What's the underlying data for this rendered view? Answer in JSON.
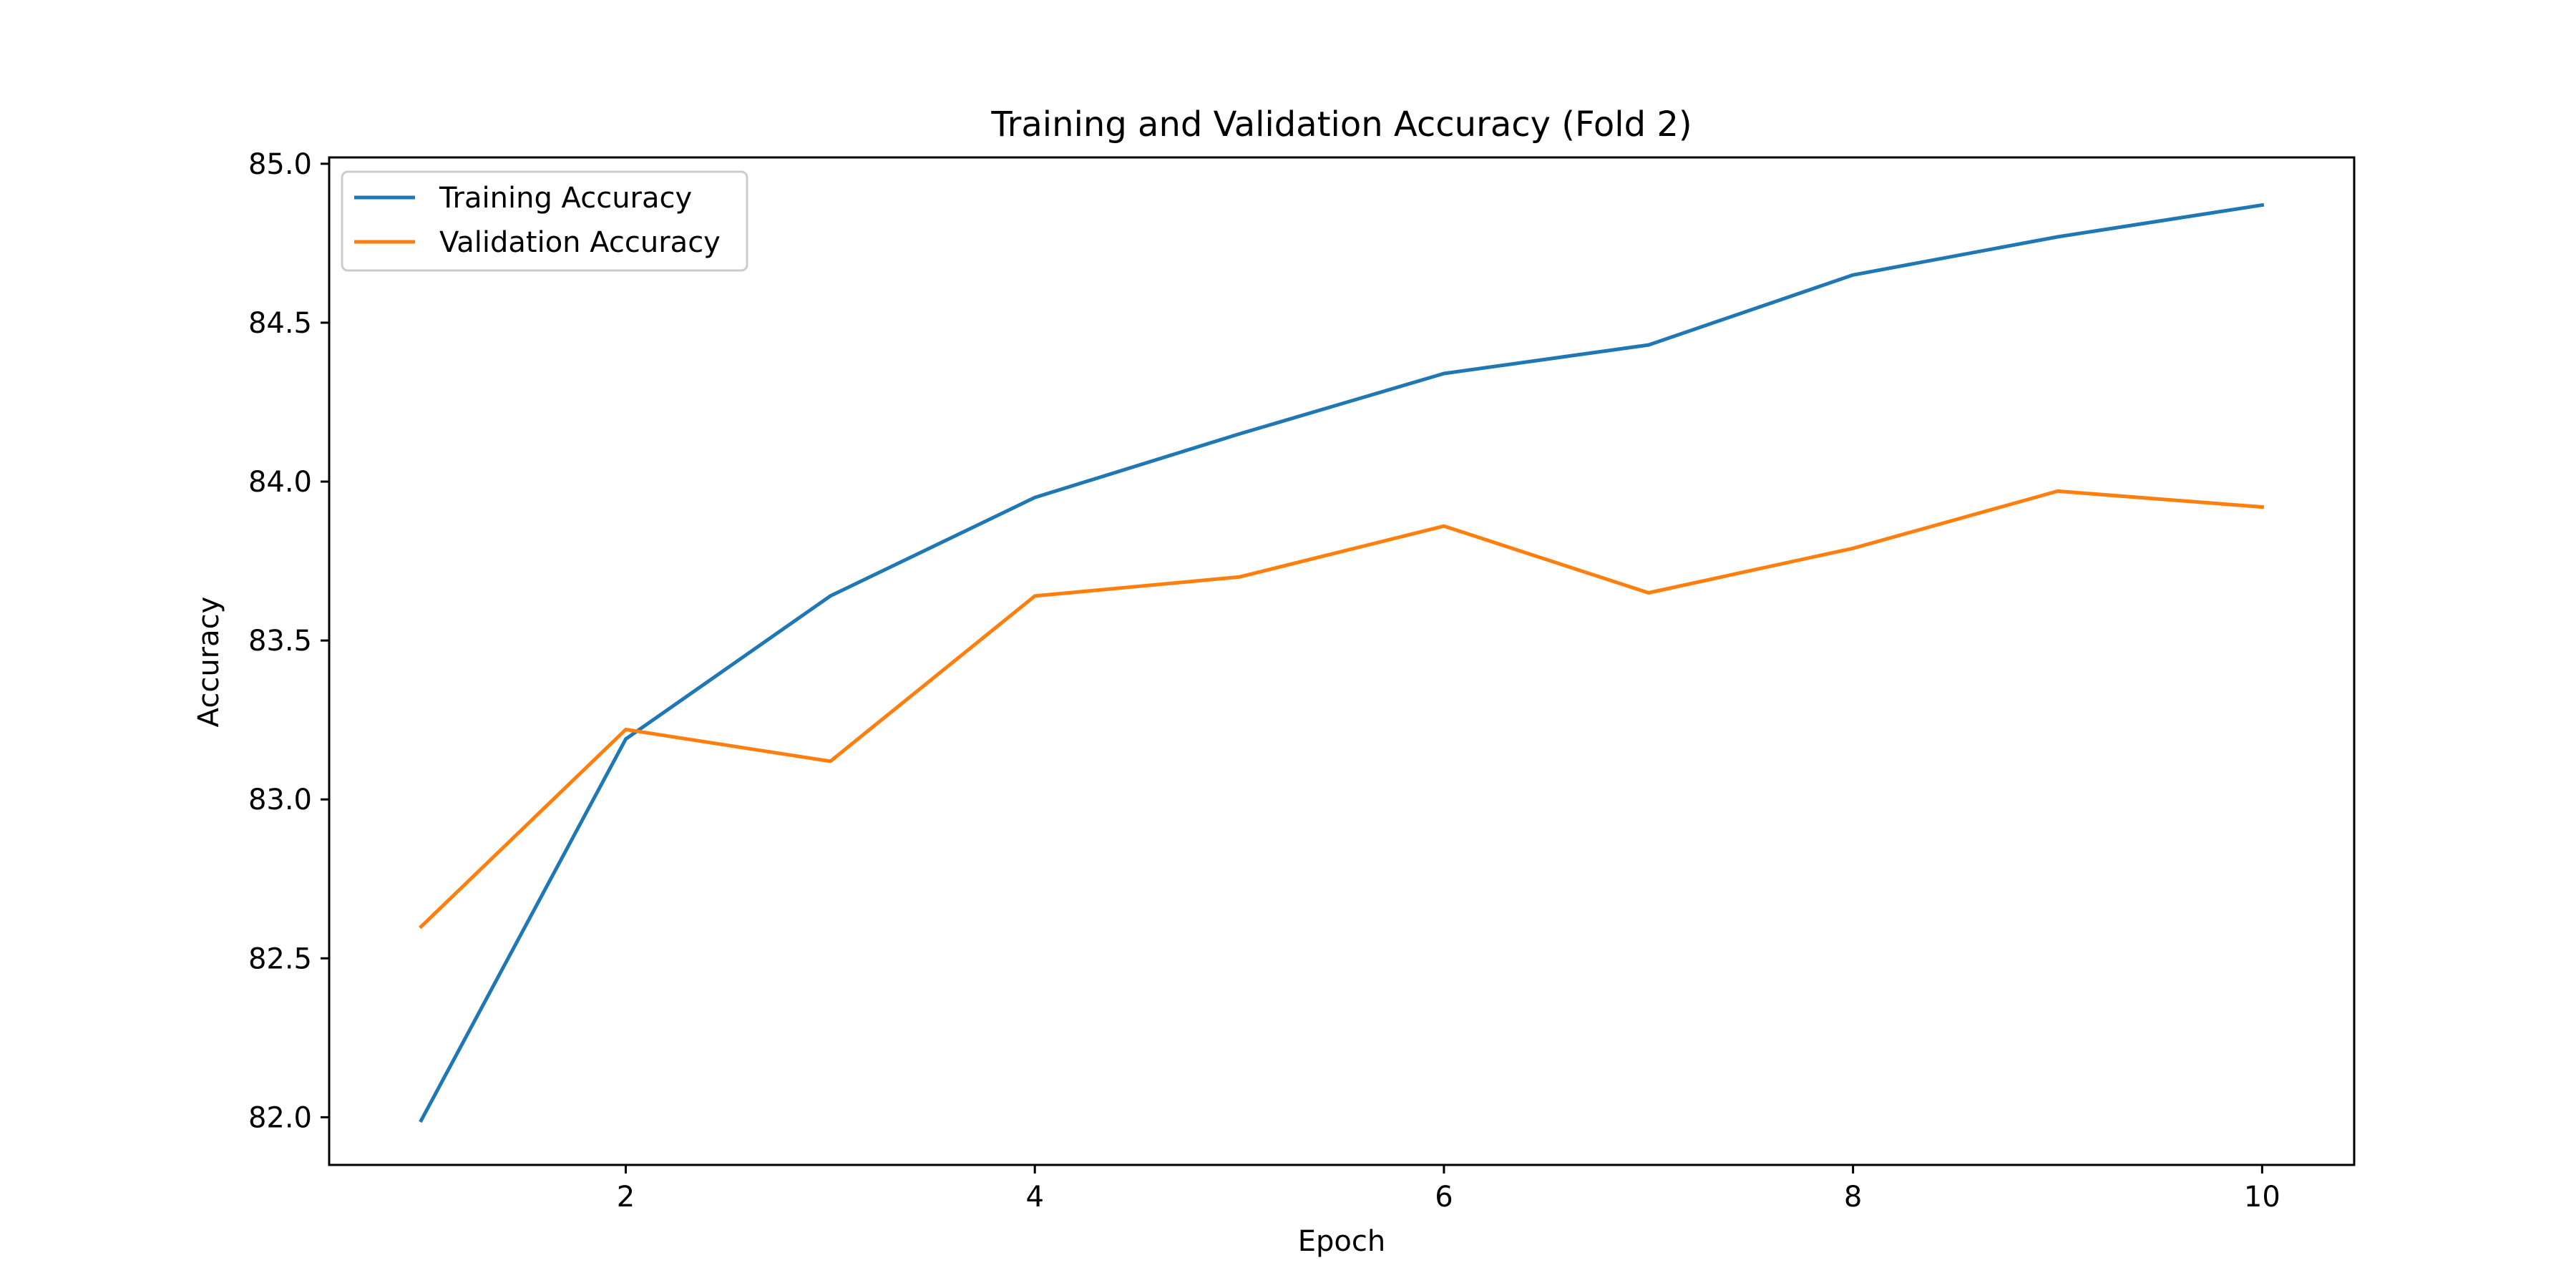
{
  "chart_data": {
    "type": "line",
    "title": "Training and Validation Accuracy (Fold 2)",
    "xlabel": "Epoch",
    "ylabel": "Accuracy",
    "x": [
      1,
      2,
      3,
      4,
      5,
      6,
      7,
      8,
      9,
      10
    ],
    "xlim": [
      0.55,
      10.45
    ],
    "ylim": [
      81.85,
      85.02
    ],
    "xticks": [
      2,
      4,
      6,
      8,
      10
    ],
    "yticks": [
      82.0,
      82.5,
      83.0,
      83.5,
      84.0,
      84.5,
      85.0
    ],
    "xtick_labels": [
      "2",
      "4",
      "6",
      "8",
      "10"
    ],
    "ytick_labels": [
      "82.0",
      "82.5",
      "83.0",
      "83.5",
      "84.0",
      "84.5",
      "85.0"
    ],
    "grid": false,
    "legend_position": "top-left",
    "series": [
      {
        "name": "Training Accuracy",
        "color": "#1f77b4",
        "values": [
          81.99,
          83.19,
          83.64,
          83.95,
          84.15,
          84.34,
          84.43,
          84.65,
          84.77,
          84.87
        ]
      },
      {
        "name": "Validation Accuracy",
        "color": "#ff7f0e",
        "values": [
          82.6,
          83.22,
          83.12,
          83.64,
          83.7,
          83.86,
          83.65,
          83.79,
          83.97,
          83.92
        ]
      }
    ]
  }
}
